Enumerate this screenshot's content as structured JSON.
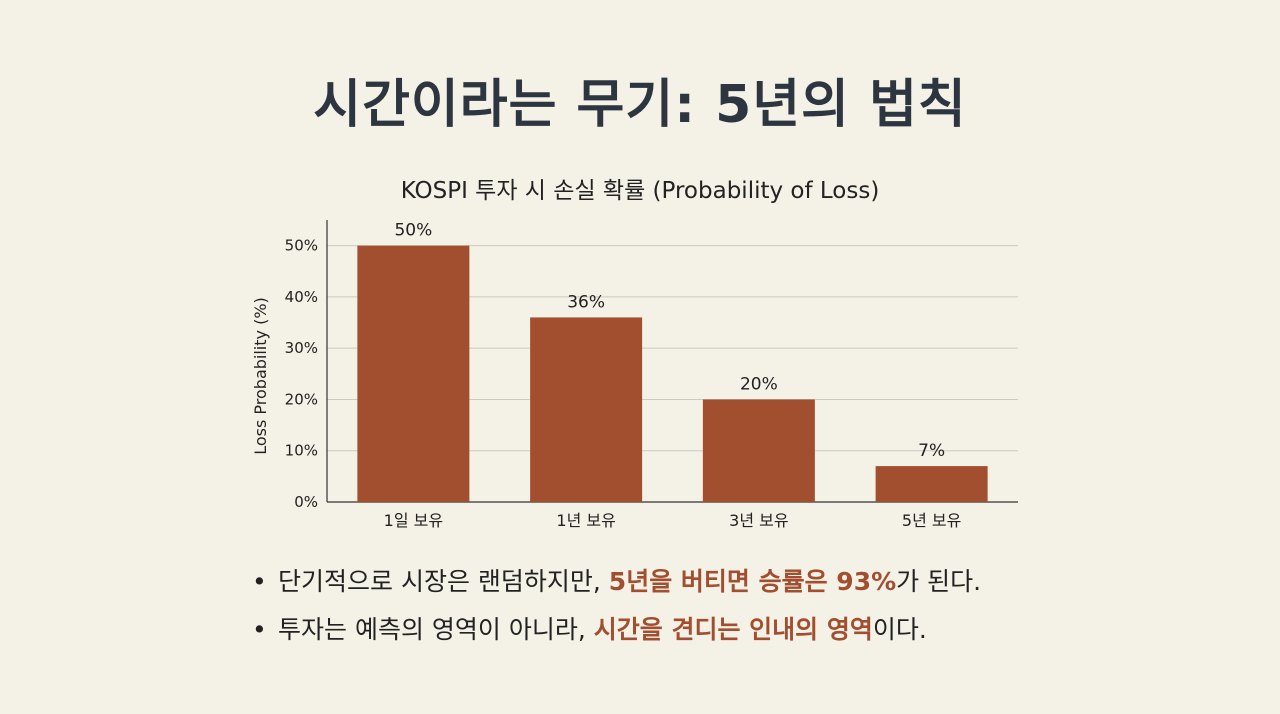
{
  "page": {
    "title": "시간이라는 무기: 5년의 법칙"
  },
  "chart_data": {
    "type": "bar",
    "title": "KOSPI 투자 시 손실 확률 (Probability of Loss)",
    "xlabel": "",
    "ylabel": "Loss Probability (%)",
    "categories": [
      "1일 보유",
      "1년 보유",
      "3년 보유",
      "5년 보유"
    ],
    "values": [
      50,
      36,
      20,
      7
    ],
    "value_labels": [
      "50%",
      "36%",
      "20%",
      "7%"
    ],
    "ylim": [
      0,
      55
    ],
    "yticks": [
      0,
      10,
      20,
      30,
      40,
      50
    ],
    "ytick_labels": [
      "0%",
      "10%",
      "20%",
      "30%",
      "40%",
      "50%"
    ],
    "grid": true,
    "bar_color": "#a24f30"
  },
  "bullets": [
    {
      "pre": "단기적으로 시장은 랜덤하지만, ",
      "highlight": "5년을 버티면 승률은 93%",
      "post": "가 된다."
    },
    {
      "pre": "투자는 예측의 영역이 아니라, ",
      "highlight": "시간을 견디는 인내의 영역",
      "post": "이다."
    }
  ],
  "colors": {
    "background": "#f4f1e7",
    "title": "#2c3540",
    "accent": "#a24f30"
  }
}
